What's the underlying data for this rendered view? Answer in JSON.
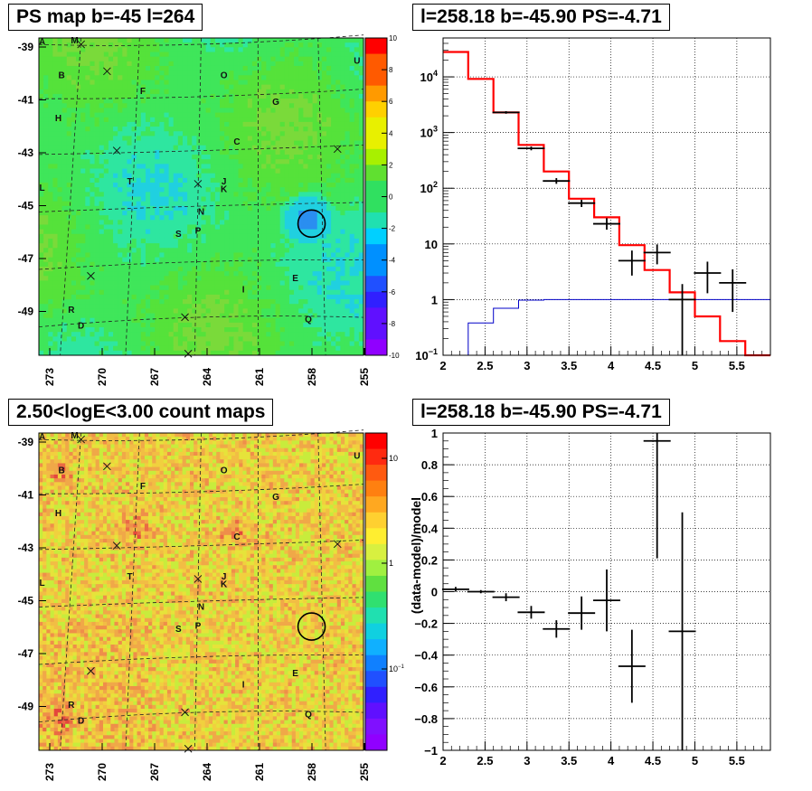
{
  "titles": {
    "map_top": "PS map b=-45 l=264",
    "spec_top": "l=258.18 b=-45.90 PS=-4.71",
    "map_bottom": "2.50<logE<3.00 count maps",
    "spec_bottom": "l=258.18 b=-45.90 PS=-4.71"
  },
  "map_axes": {
    "y_ticks": [
      "-39",
      "-41",
      "-43",
      "-45",
      "-47",
      "-49"
    ],
    "x_ticks": [
      "273",
      "270",
      "267",
      "264",
      "261",
      "258",
      "255"
    ]
  },
  "source_labels": [
    {
      "id": "A"
    },
    {
      "id": "M"
    },
    {
      "id": "B"
    },
    {
      "id": "O"
    },
    {
      "id": "U"
    },
    {
      "id": "F"
    },
    {
      "id": "G"
    },
    {
      "id": "H"
    },
    {
      "id": "C"
    },
    {
      "id": "T"
    },
    {
      "id": "J"
    },
    {
      "id": "K"
    },
    {
      "id": "L"
    },
    {
      "id": "N"
    },
    {
      "id": "S"
    },
    {
      "id": "P"
    },
    {
      "id": "E"
    },
    {
      "id": "I"
    },
    {
      "id": "R"
    },
    {
      "id": "D"
    },
    {
      "id": "Q"
    }
  ],
  "colors": {
    "map_top_base": "#44e23a",
    "map_bottom_base": "#f2b24a",
    "model_line": "#ff0000",
    "background_line": "#0000c8",
    "data": "#000000"
  },
  "chart_data": [
    {
      "type": "heatmap",
      "title": "PS map b=-45 l=264",
      "colorbar": {
        "min": -10,
        "max": 10,
        "ticks": [
          "10",
          "8",
          "6",
          "4",
          "2",
          "0",
          "-2",
          "-4",
          "-6",
          "-8",
          "-10"
        ]
      },
      "xlim": [
        274,
        254.5
      ],
      "ylim": [
        -50.5,
        -38.5
      ]
    },
    {
      "type": "line",
      "title": "l=258.18 b=-45.90 PS=-4.71",
      "xlim": [
        2,
        5.9
      ],
      "ylim": [
        0.1,
        50000
      ],
      "yscale": "log",
      "x_ticks": [
        "2",
        "2.5",
        "3",
        "3.5",
        "4",
        "4.5",
        "5",
        "5.5"
      ],
      "y_ticks": [
        {
          "v": 0.1,
          "base": "10",
          "exp": "−1"
        },
        {
          "v": 1,
          "base": "1",
          "exp": ""
        },
        {
          "v": 10,
          "base": "10",
          "exp": ""
        },
        {
          "v": 100,
          "base": "10",
          "exp": "2"
        },
        {
          "v": 1000,
          "base": "10",
          "exp": "3"
        },
        {
          "v": 10000,
          "base": "10",
          "exp": "4"
        }
      ],
      "grid": true,
      "series": [
        {
          "edges": [
            2.0,
            2.3,
            2.6,
            2.9,
            3.2,
            3.5,
            3.8,
            4.1,
            4.4,
            4.7,
            5.0,
            5.3,
            5.6,
            5.9
          ],
          "values": [
            28000,
            9200,
            2300,
            600,
            200,
            65,
            30,
            9.5,
            3.4,
            1.35,
            0.5,
            0.18,
            0.1
          ]
        },
        {
          "edges": [
            2.0,
            2.3,
            2.6,
            2.9,
            3.2,
            3.5,
            3.8,
            4.1,
            4.4,
            4.7,
            5.0,
            5.3,
            5.6,
            5.9
          ],
          "values": [
            0.1,
            0.38,
            0.7,
            0.98,
            1.0,
            1.0,
            1.0,
            1.0,
            1.0,
            1.0,
            1.0,
            1.0,
            1.0
          ]
        },
        {
          "points": [
            {
              "x": 2.75,
              "y": 2300,
              "lo": 2180,
              "hi": 2420
            },
            {
              "x": 3.05,
              "y": 520,
              "lo": 480,
              "hi": 560
            },
            {
              "x": 3.35,
              "y": 135,
              "lo": 120,
              "hi": 152
            },
            {
              "x": 3.65,
              "y": 54,
              "lo": 46,
              "hi": 62
            },
            {
              "x": 3.95,
              "y": 23,
              "lo": 18,
              "hi": 29
            },
            {
              "x": 4.25,
              "y": 5,
              "lo": 2.7,
              "hi": 7.6
            },
            {
              "x": 4.55,
              "y": 7,
              "lo": 4.3,
              "hi": 9.8
            },
            {
              "x": 4.85,
              "y": 1,
              "lo": 0.1,
              "hi": 1.9
            },
            {
              "x": 5.15,
              "y": 3,
              "lo": 1.3,
              "hi": 4.8
            },
            {
              "x": 5.45,
              "y": 2,
              "lo": 0.6,
              "hi": 3.5
            }
          ]
        }
      ]
    },
    {
      "type": "heatmap",
      "title": "2.50<logE<3.00 count maps",
      "colorbar": {
        "scale": "log",
        "ticks": [
          {
            "base": "10",
            "exp": ""
          },
          {
            "base": "1",
            "exp": ""
          },
          {
            "base": "10",
            "exp": "−1"
          }
        ]
      },
      "xlim": [
        274,
        254.5
      ],
      "ylim": [
        -50.5,
        -38.5
      ]
    },
    {
      "type": "scatter",
      "title": "l=258.18 b=-45.90 PS=-4.71",
      "ylabel": "(data-model)/model",
      "xlim": [
        2,
        5.9
      ],
      "ylim": [
        -1,
        1
      ],
      "x_ticks": [
        "2",
        "2.5",
        "3",
        "3.5",
        "4",
        "4.5",
        "5",
        "5.5"
      ],
      "y_ticks": [
        "1",
        "0.8",
        "0.6",
        "0.4",
        "0.2",
        "0",
        "−0.2",
        "−0.4",
        "−0.6",
        "−0.8",
        "−1"
      ],
      "grid": true,
      "points": [
        {
          "x": 2.15,
          "y": 0.015,
          "lo": 0.0,
          "hi": 0.03
        },
        {
          "x": 2.45,
          "y": 0.0,
          "lo": -0.01,
          "hi": 0.01
        },
        {
          "x": 2.75,
          "y": -0.035,
          "lo": -0.06,
          "hi": -0.01
        },
        {
          "x": 3.05,
          "y": -0.13,
          "lo": -0.17,
          "hi": -0.09
        },
        {
          "x": 3.35,
          "y": -0.235,
          "lo": -0.29,
          "hi": -0.18
        },
        {
          "x": 3.65,
          "y": -0.135,
          "lo": -0.24,
          "hi": -0.03
        },
        {
          "x": 3.95,
          "y": -0.055,
          "lo": -0.25,
          "hi": 0.14
        },
        {
          "x": 4.25,
          "y": -0.47,
          "lo": -0.7,
          "hi": -0.24
        },
        {
          "x": 4.55,
          "y": 0.95,
          "lo": 0.21,
          "hi": 1.0
        },
        {
          "x": 4.85,
          "y": -0.25,
          "lo": -1.0,
          "hi": 0.5
        }
      ]
    }
  ]
}
